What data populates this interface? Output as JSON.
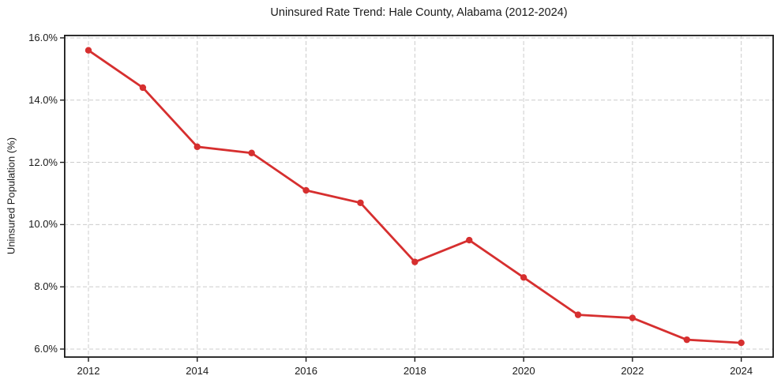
{
  "chart_data": {
    "type": "line",
    "title": "Uninsured Rate Trend: Hale County, Alabama (2012-2024)",
    "xlabel": "",
    "ylabel": "Uninsured Population (%)",
    "x": [
      2012,
      2013,
      2014,
      2015,
      2016,
      2017,
      2018,
      2019,
      2020,
      2021,
      2022,
      2023,
      2024
    ],
    "y": [
      15.6,
      14.4,
      12.5,
      12.3,
      11.1,
      10.7,
      8.8,
      9.5,
      8.3,
      7.1,
      7.0,
      6.3,
      6.2
    ],
    "xlim": [
      2011.55,
      2024.6
    ],
    "ylim": [
      5.72,
      16.1
    ],
    "xticks": {
      "values": [
        2012,
        2014,
        2016,
        2018,
        2020,
        2022,
        2024
      ],
      "labels": [
        "2012",
        "2014",
        "2016",
        "2018",
        "2020",
        "2022",
        "2024"
      ]
    },
    "yticks": {
      "values": [
        6,
        8,
        10,
        12,
        14,
        16
      ],
      "labels": [
        "6.0%",
        "8.0%",
        "10.0%",
        "12.0%",
        "14.0%",
        "16.0%"
      ]
    },
    "grid": true,
    "grid_style": "dashed",
    "legend_position": "none",
    "colors": {
      "line": "#d62f2f",
      "marker": "#d62f2f",
      "grid": "#cccccc",
      "frame": "#1a1a1a",
      "background": "#ffffff",
      "text": "#1a1a1a"
    }
  }
}
